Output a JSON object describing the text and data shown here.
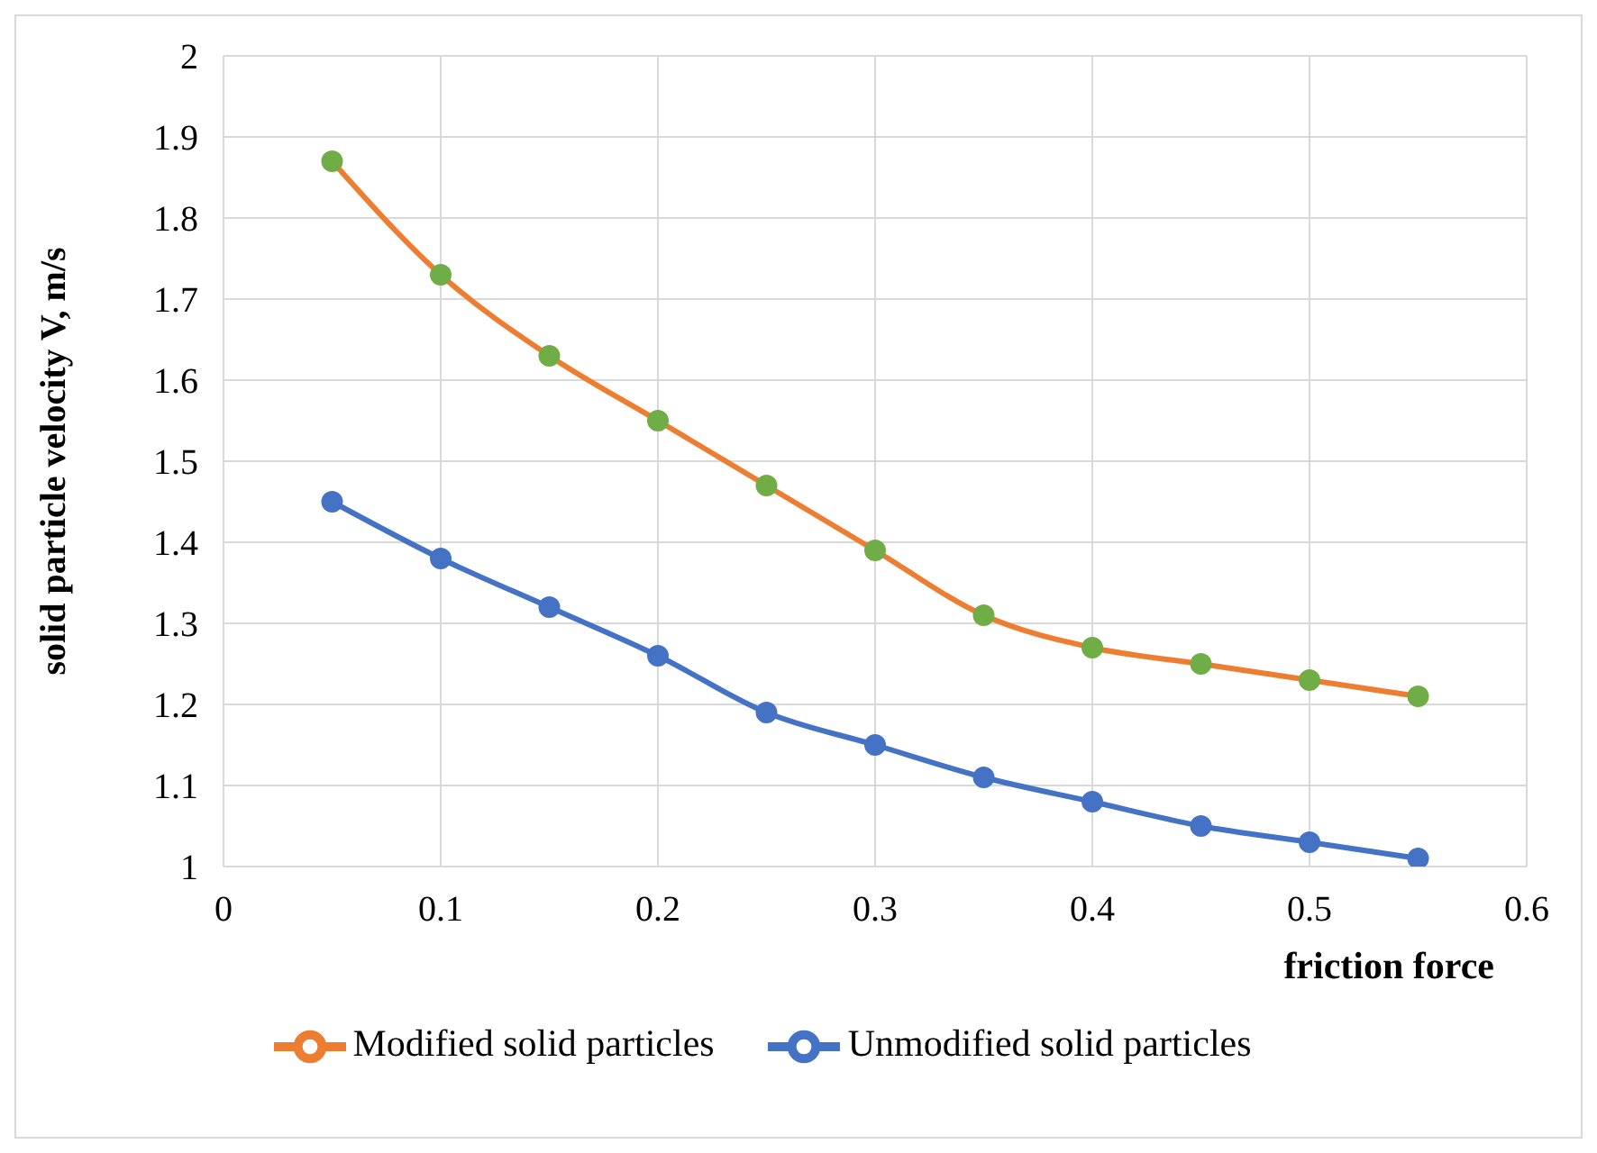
{
  "chart_data": {
    "type": "line",
    "xlabel": "friction force",
    "ylabel": "solid particle velocity V, m/s",
    "x": [
      0.05,
      0.1,
      0.15,
      0.2,
      0.25,
      0.3,
      0.35,
      0.4,
      0.45,
      0.5,
      0.55
    ],
    "series": [
      {
        "name": "Unmodified solid particles",
        "color": "#4472c4",
        "values": [
          1.45,
          1.38,
          1.32,
          1.26,
          1.19,
          1.15,
          1.11,
          1.08,
          1.05,
          1.03,
          1.01
        ]
      },
      {
        "name": "Modified solid particles",
        "color": "#ed7d31",
        "colors": [
          "#70ad47",
          "#70ad47",
          "#70ad47",
          "#70ad47",
          "#70ad47",
          "#70ad47",
          "#70ad47",
          "#70ad47",
          "#70ad47",
          "#70ad47",
          "#70ad47"
        ],
        "values": [
          1.87,
          1.73,
          1.63,
          1.55,
          1.47,
          1.39,
          1.31,
          1.27,
          1.25,
          1.23,
          1.21
        ]
      }
    ],
    "xlim": [
      0,
      0.6
    ],
    "xticks": [
      0,
      0.1,
      0.2,
      0.3,
      0.4,
      0.5,
      0.6
    ],
    "ylim": [
      1,
      2
    ],
    "yticks": [
      1,
      1.1,
      1.2,
      1.3,
      1.4,
      1.5,
      1.6,
      1.7,
      1.8,
      1.9,
      2
    ],
    "grid": true,
    "legend": "bottom",
    "marker": "circle",
    "line_style": "solid"
  }
}
